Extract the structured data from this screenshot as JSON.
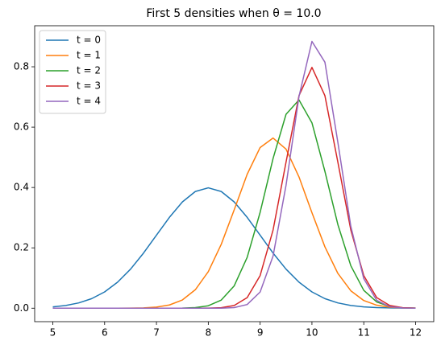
{
  "chart_data": {
    "type": "line",
    "title": "First 5 densities when θ = 10.0",
    "x": [
      5,
      5.25,
      5.5,
      5.75,
      6,
      6.25,
      6.5,
      6.75,
      7,
      7.25,
      7.5,
      7.75,
      8,
      8.25,
      8.5,
      8.75,
      9,
      9.25,
      9.5,
      9.75,
      10,
      10.25,
      10.5,
      10.75,
      11,
      11.25,
      11.5,
      11.75,
      12
    ],
    "series": [
      {
        "name": "t = 0",
        "color": "#1f77b4",
        "values": [
          0.0044,
          0.0091,
          0.0175,
          0.0317,
          0.054,
          0.0863,
          0.1295,
          0.1826,
          0.242,
          0.3011,
          0.3521,
          0.3867,
          0.3989,
          0.3867,
          0.3521,
          0.3011,
          0.242,
          0.1826,
          0.1295,
          0.0863,
          0.054,
          0.0317,
          0.0175,
          0.0091,
          0.0044,
          0.002,
          0.0009,
          0.0004,
          0.0001
        ]
      },
      {
        "name": "t = 1",
        "color": "#ff7f0e",
        "values": [
          0,
          0,
          0,
          0,
          0,
          0.0001,
          0.0003,
          0.0011,
          0.0037,
          0.0107,
          0.0273,
          0.0613,
          0.1212,
          0.2117,
          0.326,
          0.4437,
          0.5324,
          0.5639,
          0.5271,
          0.4349,
          0.3164,
          0.2034,
          0.1153,
          0.0577,
          0.0254,
          0.0099,
          0.0034,
          0.001,
          0.0003
        ]
      },
      {
        "name": "t = 2",
        "color": "#2ca02c",
        "values": [
          0,
          0,
          0,
          0,
          0,
          0,
          0,
          0,
          0,
          0.0001,
          0.0004,
          0.002,
          0.0081,
          0.027,
          0.0741,
          0.1685,
          0.3175,
          0.4962,
          0.6426,
          0.6901,
          0.6143,
          0.4534,
          0.2772,
          0.1408,
          0.0592,
          0.0207,
          0.006,
          0.0014,
          0.0003
        ]
      },
      {
        "name": "t = 3",
        "color": "#d62728",
        "values": [
          0,
          0,
          0,
          0,
          0,
          0,
          0,
          0,
          0,
          0,
          0,
          0,
          0.0003,
          0.0017,
          0.0089,
          0.035,
          0.108,
          0.2591,
          0.484,
          0.7042,
          0.7979,
          0.7042,
          0.484,
          0.2591,
          0.108,
          0.035,
          0.0089,
          0.0017,
          0.0003
        ]
      },
      {
        "name": "t = 4",
        "color": "#9467bd",
        "values": [
          0,
          0,
          0,
          0,
          0,
          0,
          0,
          0,
          0,
          0,
          0,
          0,
          0,
          0.0002,
          0.002,
          0.0122,
          0.0537,
          0.173,
          0.4073,
          0.7016,
          0.884,
          0.8153,
          0.5497,
          0.2712,
          0.0979,
          0.0259,
          0.005,
          0.0007,
          0.0001
        ]
      }
    ],
    "xlim": [
      4.65,
      12.35
    ],
    "xticks": [
      5,
      6,
      7,
      8,
      9,
      10,
      11,
      12
    ],
    "ylim": [
      -0.0446,
      0.936
    ],
    "yticks": [
      {
        "value": 0,
        "label": "0.0"
      },
      {
        "value": 0.2,
        "label": "0.2"
      },
      {
        "value": 0.4,
        "label": "0.4"
      },
      {
        "value": 0.6,
        "label": "0.6"
      },
      {
        "value": 0.8,
        "label": "0.8"
      }
    ],
    "legend": "upper left",
    "grid": false
  }
}
